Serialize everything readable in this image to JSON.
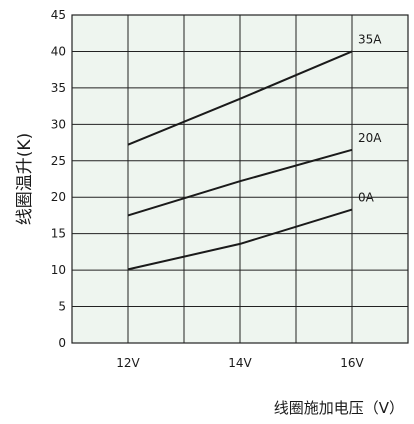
{
  "chart_data": {
    "type": "line",
    "xlabel": "线圈施加电压（V）",
    "ylabel": "线圈温升(K)",
    "x": [
      12,
      14,
      16
    ],
    "xtick_labels": [
      "12V",
      "14V",
      "16V"
    ],
    "ylim": [
      0,
      45
    ],
    "yticks": [
      0,
      5,
      10,
      15,
      20,
      25,
      30,
      35,
      40,
      45
    ],
    "grid": true,
    "series": [
      {
        "name": "35A",
        "points": [
          [
            12,
            27.2
          ],
          [
            14,
            33.5
          ],
          [
            16,
            40.0
          ]
        ]
      },
      {
        "name": "20A",
        "points": [
          [
            12,
            17.5
          ],
          [
            14,
            22.2
          ],
          [
            16,
            26.5
          ]
        ]
      },
      {
        "name": "0A",
        "points": [
          [
            12,
            10.1
          ],
          [
            14,
            13.6
          ],
          [
            16,
            18.3
          ]
        ]
      }
    ]
  },
  "colors": {
    "plot_background": "#eef5ef",
    "grid": "#222222",
    "line": "#1a1a1a"
  }
}
